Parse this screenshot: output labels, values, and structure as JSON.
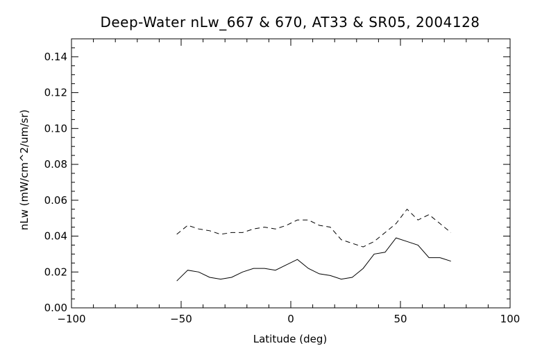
{
  "chart_data": {
    "type": "line",
    "title": "Deep-Water nLw_667 & 670, AT33 & SR05, 2004128",
    "xlabel": "Latitude (deg)",
    "ylabel": "nLw (mW/cm^2/um/sr)",
    "xlim": [
      -100,
      100
    ],
    "ylim": [
      0.0,
      0.15
    ],
    "xticks": [
      -100,
      -50,
      0,
      50,
      100
    ],
    "xtick_labels": [
      "−100",
      "−50",
      "0",
      "50",
      "100"
    ],
    "yticks": [
      0.0,
      0.02,
      0.04,
      0.06,
      0.08,
      0.1,
      0.12,
      0.14
    ],
    "ytick_labels": [
      "0.00",
      "0.02",
      "0.04",
      "0.06",
      "0.08",
      "0.10",
      "0.12",
      "0.14"
    ],
    "grid": false,
    "series": [
      {
        "style": "solid",
        "color": "#000000",
        "x": [
          -52,
          -47,
          -42,
          -37,
          -32,
          -27,
          -22,
          -17,
          -12,
          -7,
          -2,
          3,
          8,
          13,
          18,
          23,
          28,
          33,
          38,
          43,
          48,
          53,
          58,
          63,
          68,
          73
        ],
        "y": [
          0.015,
          0.021,
          0.02,
          0.017,
          0.016,
          0.017,
          0.02,
          0.022,
          0.022,
          0.021,
          0.024,
          0.027,
          0.022,
          0.019,
          0.018,
          0.016,
          0.017,
          0.022,
          0.03,
          0.031,
          0.039,
          0.037,
          0.035,
          0.028,
          0.028,
          0.026
        ]
      },
      {
        "style": "dashed",
        "color": "#000000",
        "x": [
          -52,
          -47,
          -42,
          -37,
          -32,
          -27,
          -22,
          -17,
          -12,
          -7,
          -2,
          3,
          8,
          13,
          18,
          23,
          28,
          33,
          38,
          43,
          48,
          53,
          58,
          63,
          68,
          73
        ],
        "y": [
          0.041,
          0.046,
          0.044,
          0.043,
          0.041,
          0.042,
          0.042,
          0.044,
          0.045,
          0.044,
          0.046,
          0.049,
          0.049,
          0.046,
          0.045,
          0.038,
          0.036,
          0.034,
          0.037,
          0.042,
          0.047,
          0.055,
          0.049,
          0.052,
          0.047,
          0.042
        ]
      }
    ]
  }
}
